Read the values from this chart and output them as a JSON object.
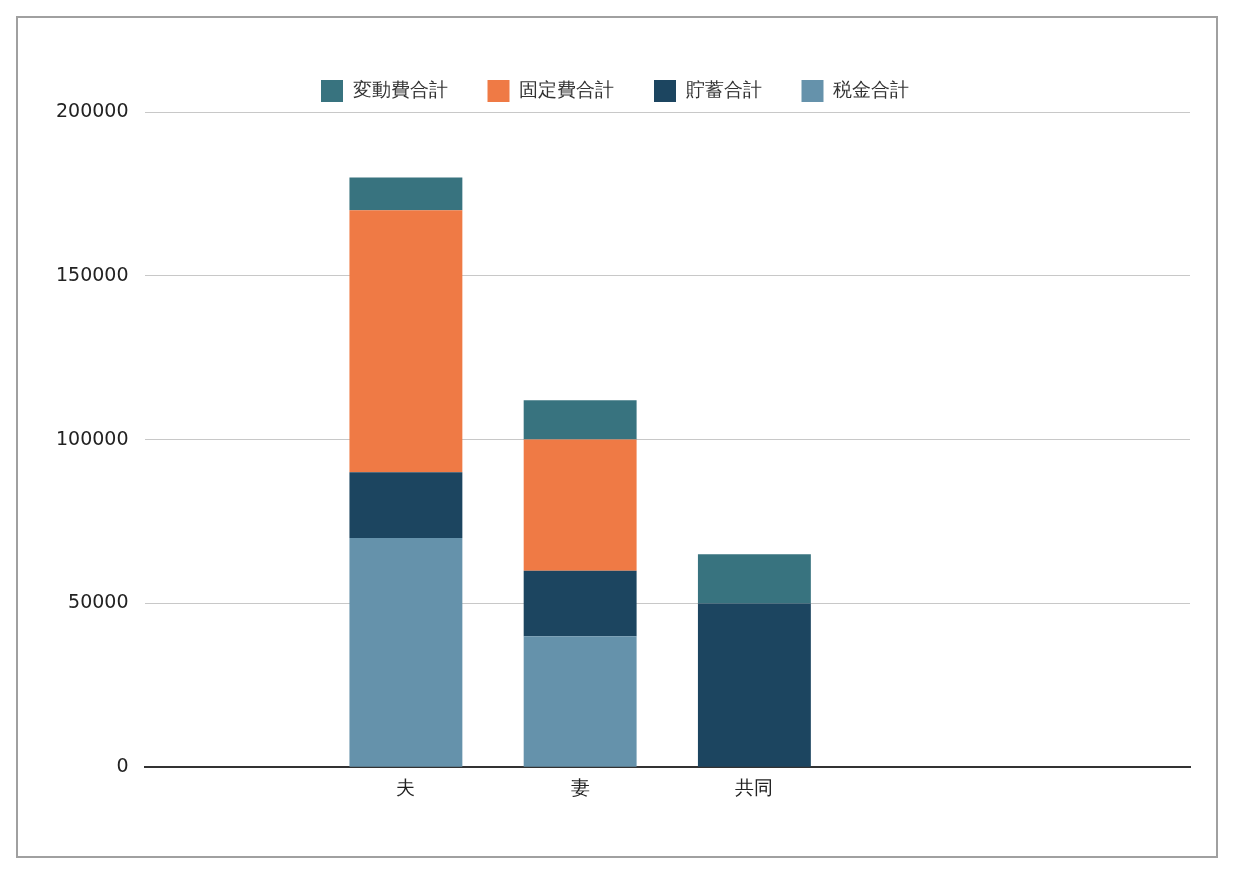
{
  "chart_data": {
    "type": "bar",
    "stacked": true,
    "categories": [
      null,
      "夫",
      "妻",
      "共同",
      null,
      null
    ],
    "series": [
      {
        "name": "税金合計",
        "color": "#6592ab",
        "values": [
          null,
          70000,
          40000,
          0,
          null,
          null
        ]
      },
      {
        "name": "貯蓄合計",
        "color": "#1c4560",
        "values": [
          null,
          20000,
          20000,
          50000,
          null,
          null
        ]
      },
      {
        "name": "固定費合計",
        "color": "#ef7a45",
        "values": [
          null,
          80000,
          40000,
          0,
          null,
          null
        ]
      },
      {
        "name": "変動費合計",
        "color": "#38737f",
        "values": [
          null,
          10000,
          12000,
          15000,
          null,
          null
        ]
      }
    ],
    "ylim": [
      0,
      200000
    ],
    "yticks": [
      0,
      50000,
      100000,
      150000,
      200000
    ],
    "grid": "y",
    "legend": "top"
  }
}
